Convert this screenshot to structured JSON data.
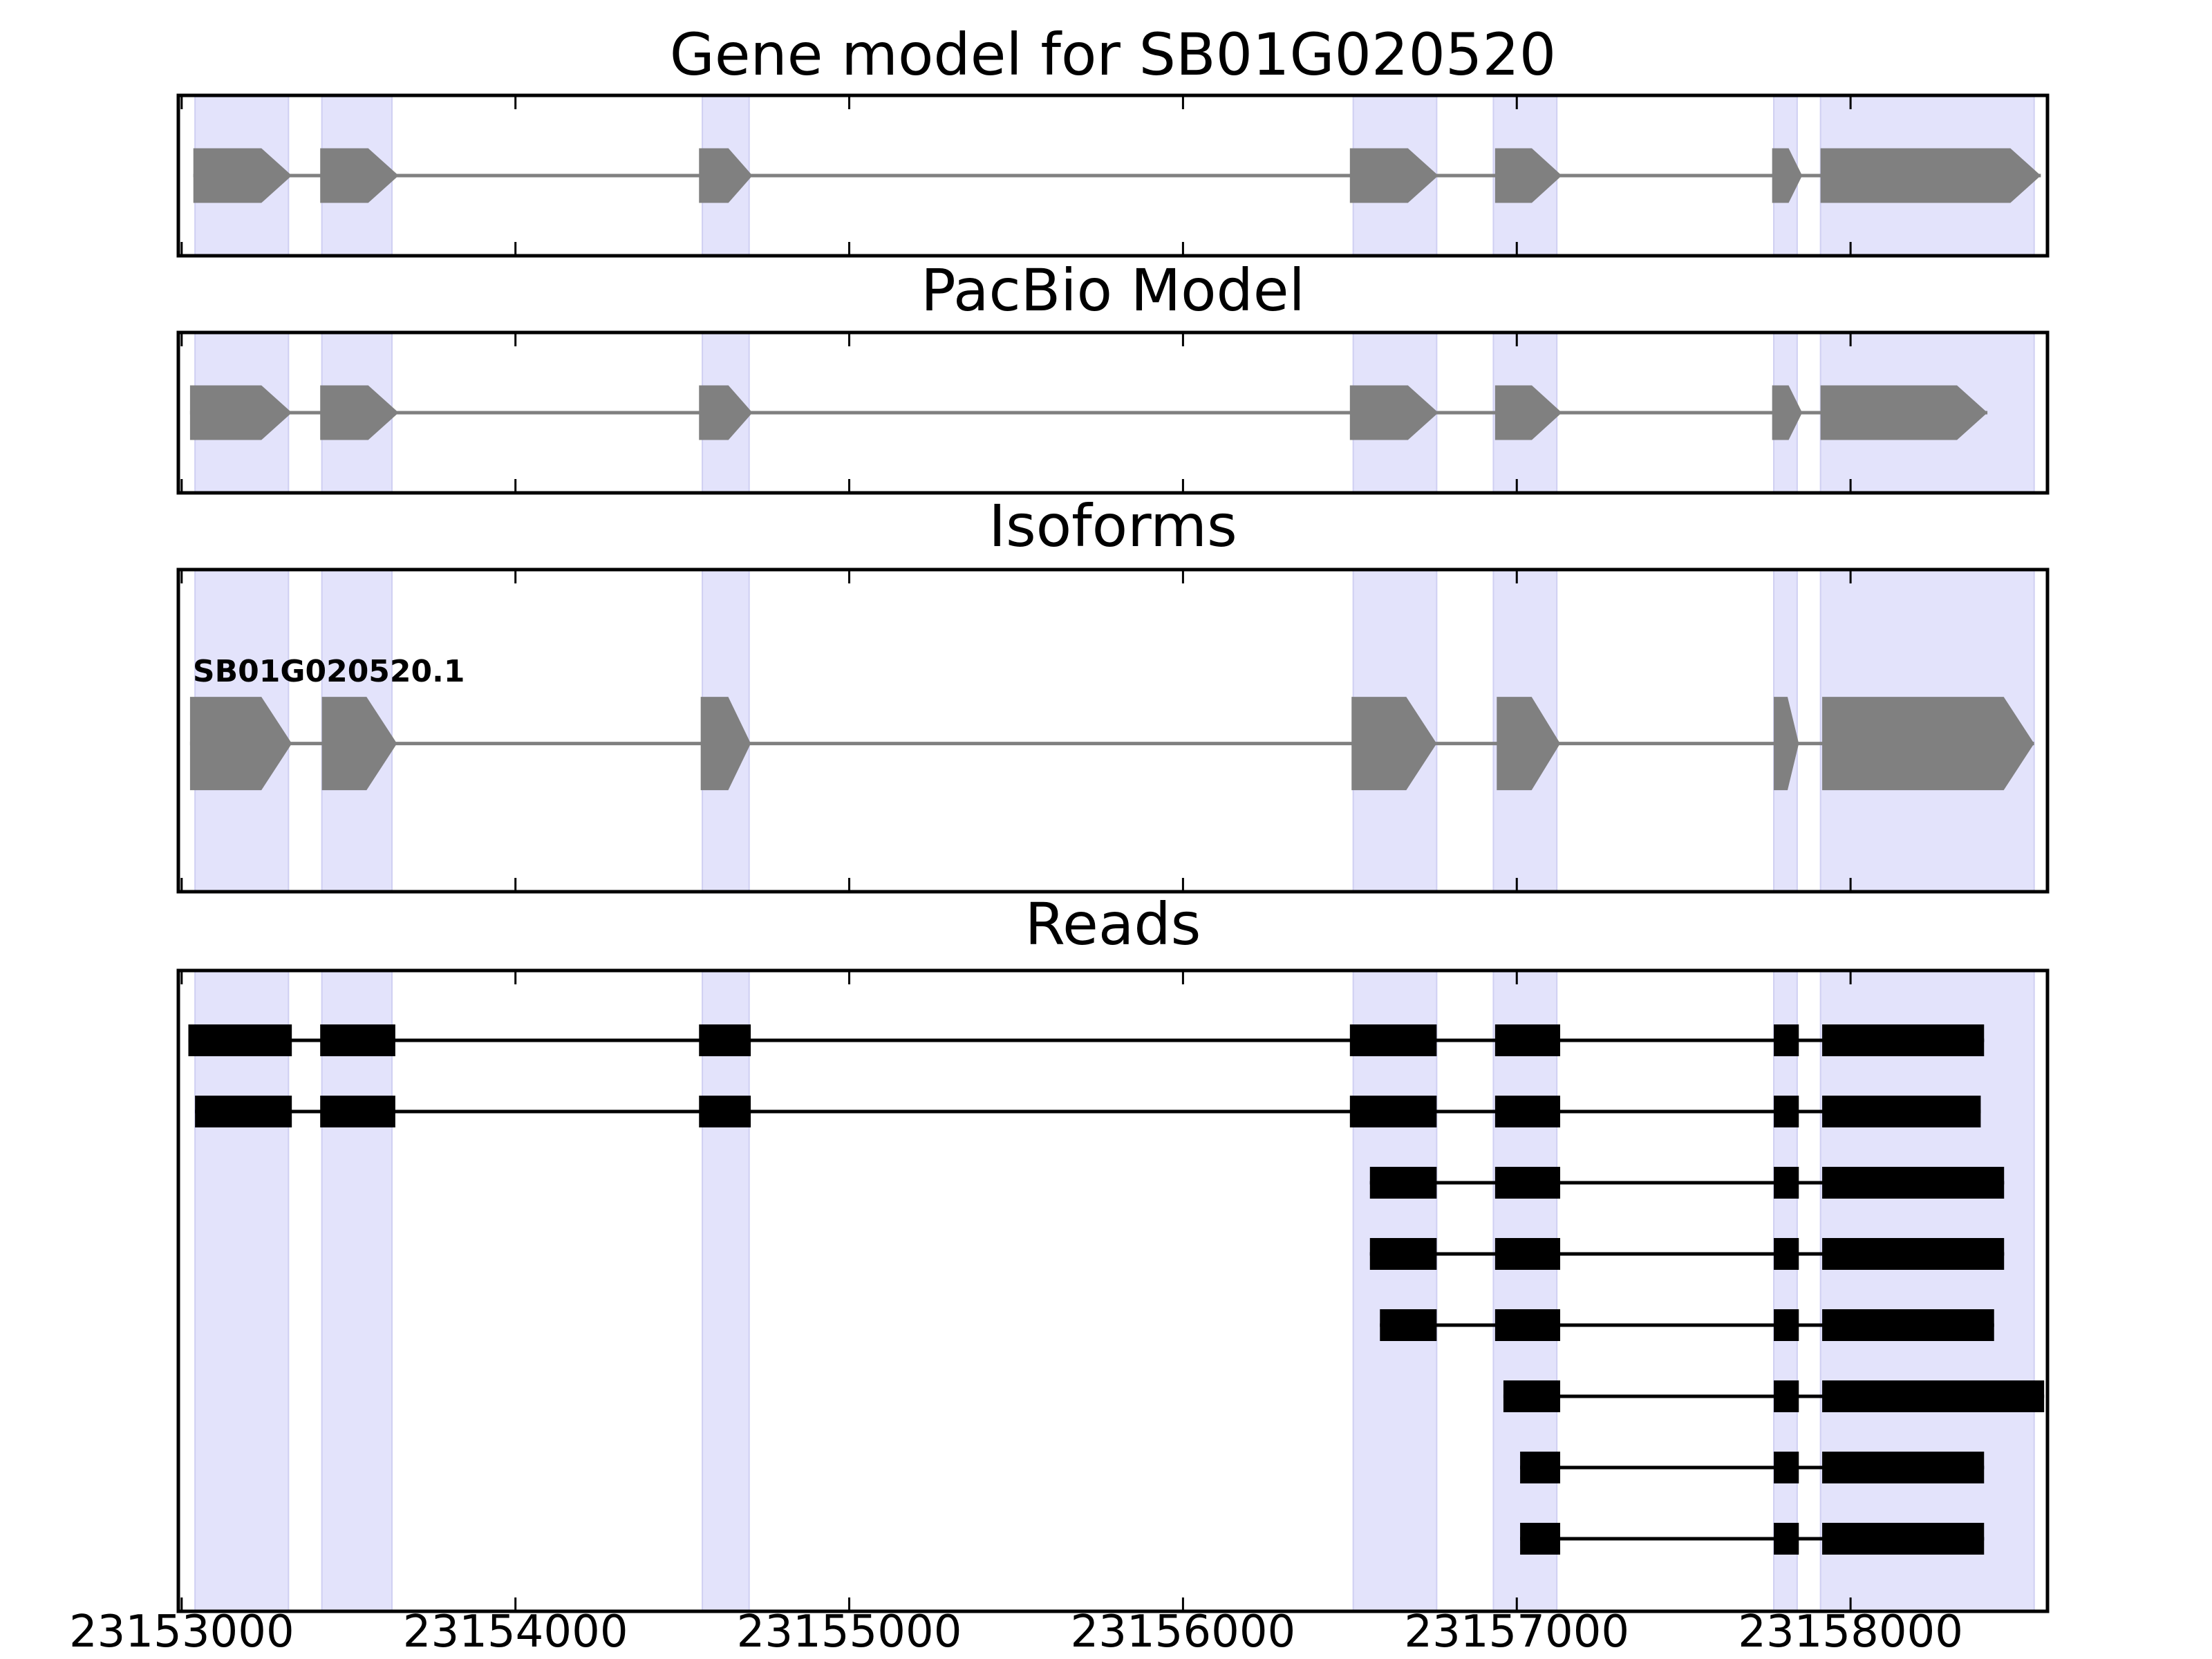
{
  "chart_data": {
    "type": "gene-structure",
    "xlim": [
      23152990,
      23158590
    ],
    "xticks": [
      23153000,
      23154000,
      23155000,
      23156000,
      23157000,
      23158000
    ],
    "xtick_labels": [
      "23153000",
      "23154000",
      "23155000",
      "23156000",
      "23157000",
      "23158000"
    ],
    "grid": false,
    "highlight_color": "#e3e3fb",
    "highlight_regions": [
      [
        23153040,
        23153320
      ],
      [
        23153420,
        23153630
      ],
      [
        23154560,
        23154700
      ],
      [
        23156510,
        23156760
      ],
      [
        23156930,
        23157120
      ],
      [
        23157770,
        23157840
      ],
      [
        23157910,
        23158550
      ]
    ],
    "panels": [
      {
        "id": "gene-model",
        "title": "Gene model for SB01G020520",
        "color": "#808080",
        "arrow_height": 0.34,
        "models": [
          {
            "label": "",
            "exons": [
              [
                23153035,
                23153330
              ],
              [
                23153415,
                23153650
              ],
              [
                23154550,
                23154710
              ],
              [
                23156500,
                23156765
              ],
              [
                23156935,
                23157135
              ],
              [
                23157765,
                23157855
              ],
              [
                23157910,
                23158570
              ]
            ]
          }
        ]
      },
      {
        "id": "pacbio-model",
        "title": "PacBio Model",
        "color": "#808080",
        "arrow_height": 0.34,
        "models": [
          {
            "label": "",
            "exons": [
              [
                23153025,
                23153330
              ],
              [
                23153415,
                23153650
              ],
              [
                23154550,
                23154710
              ],
              [
                23156500,
                23156765
              ],
              [
                23156935,
                23157135
              ],
              [
                23157765,
                23157855
              ],
              [
                23157910,
                23158410
              ]
            ]
          }
        ]
      },
      {
        "id": "isoforms",
        "title": "Isoforms",
        "color": "#808080",
        "arrow_height": 0.29,
        "models": [
          {
            "label": "SB01G020520.1",
            "exons": [
              [
                23153025,
                23153330
              ],
              [
                23153420,
                23153645
              ],
              [
                23154555,
                23154705
              ],
              [
                23156505,
                23156760
              ],
              [
                23156940,
                23157130
              ],
              [
                23157770,
                23157845
              ],
              [
                23157915,
                23158550
              ]
            ]
          }
        ]
      },
      {
        "id": "reads",
        "title": "Reads",
        "color": "#000000",
        "reads": [
          [
            [
              23153020,
              23153330
            ],
            [
              23153415,
              23153640
            ],
            [
              23154550,
              23154705
            ],
            [
              23156500,
              23156760
            ],
            [
              23156935,
              23157130
            ],
            [
              23157770,
              23157845
            ],
            [
              23157915,
              23158400
            ]
          ],
          [
            [
              23153040,
              23153330
            ],
            [
              23153415,
              23153640
            ],
            [
              23154550,
              23154705
            ],
            [
              23156500,
              23156760
            ],
            [
              23156935,
              23157130
            ],
            [
              23157770,
              23157845
            ],
            [
              23157915,
              23158390
            ]
          ],
          [
            [
              23156560,
              23156760
            ],
            [
              23156935,
              23157130
            ],
            [
              23157770,
              23157845
            ],
            [
              23157915,
              23158460
            ]
          ],
          [
            [
              23156560,
              23156760
            ],
            [
              23156935,
              23157130
            ],
            [
              23157770,
              23157845
            ],
            [
              23157915,
              23158460
            ]
          ],
          [
            [
              23156590,
              23156760
            ],
            [
              23156935,
              23157130
            ],
            [
              23157770,
              23157845
            ],
            [
              23157915,
              23158430
            ]
          ],
          [
            [
              23156960,
              23157130
            ],
            [
              23157770,
              23157845
            ],
            [
              23157915,
              23158580
            ]
          ],
          [
            [
              23157010,
              23157130
            ],
            [
              23157770,
              23157845
            ],
            [
              23157915,
              23158400
            ]
          ],
          [
            [
              23157010,
              23157130
            ],
            [
              23157770,
              23157845
            ],
            [
              23157915,
              23158400
            ]
          ]
        ]
      }
    ]
  }
}
